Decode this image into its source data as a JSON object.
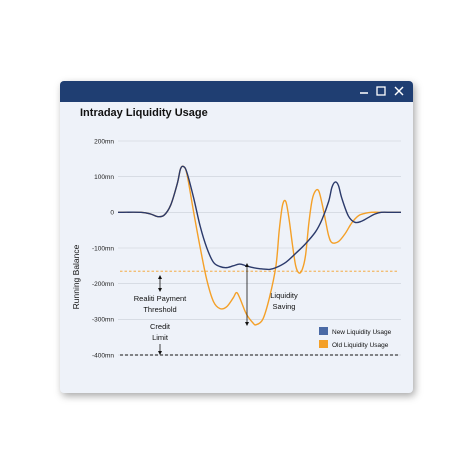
{
  "window": {
    "controls": [
      "minimize-icon",
      "maximize-icon",
      "close-icon"
    ]
  },
  "chart_data": {
    "type": "line",
    "title": "Intraday Liquidity Usage",
    "xlabel": "",
    "ylabel": "Running Balance",
    "ylim": [
      -400,
      200
    ],
    "yticks": [
      {
        "v": 200,
        "label": "200mn"
      },
      {
        "v": 100,
        "label": "100mn"
      },
      {
        "v": 0,
        "label": "0"
      },
      {
        "v": -100,
        "label": "-100mn"
      },
      {
        "v": -200,
        "label": "-200mn"
      },
      {
        "v": -300,
        "label": "-300mn"
      },
      {
        "v": -400,
        "label": "-400mn"
      }
    ],
    "grid": true,
    "legend_position": "bottom-right",
    "series": [
      {
        "name": "New Liquidity Usage",
        "color": "#2b3a6b",
        "points": [
          [
            0,
            0
          ],
          [
            7,
            0
          ],
          [
            10,
            -5
          ],
          [
            12,
            -12
          ],
          [
            14,
            -8
          ],
          [
            16,
            20
          ],
          [
            18,
            80
          ],
          [
            19,
            122
          ],
          [
            20,
            128
          ],
          [
            21,
            110
          ],
          [
            23,
            40
          ],
          [
            25,
            -40
          ],
          [
            27,
            -100
          ],
          [
            29,
            -140
          ],
          [
            31,
            -152
          ],
          [
            33,
            -155
          ],
          [
            35,
            -150
          ],
          [
            37,
            -145
          ],
          [
            39,
            -150
          ],
          [
            41,
            -155
          ],
          [
            43,
            -158
          ],
          [
            46,
            -160
          ],
          [
            48,
            -155
          ],
          [
            51,
            -140
          ],
          [
            54,
            -115
          ],
          [
            57,
            -88
          ],
          [
            60,
            -55
          ],
          [
            62,
            -20
          ],
          [
            64,
            30
          ],
          [
            65,
            70
          ],
          [
            66,
            85
          ],
          [
            67,
            75
          ],
          [
            68,
            40
          ],
          [
            70,
            -10
          ],
          [
            72,
            -28
          ],
          [
            74,
            -25
          ],
          [
            76,
            -15
          ],
          [
            78,
            -5
          ],
          [
            80,
            0
          ],
          [
            83,
            0
          ],
          [
            86,
            0
          ]
        ]
      },
      {
        "name": "Old Liquidity Usage",
        "color": "#f4a028",
        "points": [
          [
            0,
            0
          ],
          [
            7,
            0
          ],
          [
            10,
            -5
          ],
          [
            12,
            -12
          ],
          [
            14,
            -8
          ],
          [
            16,
            20
          ],
          [
            18,
            80
          ],
          [
            19,
            122
          ],
          [
            20,
            128
          ],
          [
            21,
            105
          ],
          [
            23,
            0
          ],
          [
            25,
            -100
          ],
          [
            27,
            -190
          ],
          [
            29,
            -250
          ],
          [
            31,
            -270
          ],
          [
            33,
            -265
          ],
          [
            35,
            -240
          ],
          [
            36,
            -225
          ],
          [
            37,
            -240
          ],
          [
            39,
            -285
          ],
          [
            41,
            -310
          ],
          [
            42,
            -315
          ],
          [
            44,
            -300
          ],
          [
            46,
            -240
          ],
          [
            48,
            -150
          ],
          [
            49,
            -50
          ],
          [
            50,
            20
          ],
          [
            51,
            30
          ],
          [
            52,
            -20
          ],
          [
            53,
            -90
          ],
          [
            54,
            -150
          ],
          [
            55,
            -170
          ],
          [
            56,
            -160
          ],
          [
            57,
            -120
          ],
          [
            58,
            -30
          ],
          [
            59,
            35
          ],
          [
            60,
            60
          ],
          [
            61,
            60
          ],
          [
            62,
            25
          ],
          [
            63,
            -20
          ],
          [
            64,
            -65
          ],
          [
            65,
            -85
          ],
          [
            67,
            -82
          ],
          [
            69,
            -60
          ],
          [
            71,
            -30
          ],
          [
            73,
            -10
          ],
          [
            75,
            -3
          ],
          [
            77,
            0
          ],
          [
            81,
            0
          ],
          [
            86,
            0
          ]
        ]
      }
    ],
    "reference_lines": [
      {
        "name": "Realiti Payment Threshold",
        "value": -165,
        "color": "#f4a028",
        "style": "dashed"
      },
      {
        "name": "Credit Limit",
        "value": -400,
        "color": "#111111",
        "style": "dashed"
      }
    ],
    "annotations": [
      {
        "text_lines": [
          "Realiti Payment",
          "Threshold"
        ]
      },
      {
        "text_lines": [
          "Credit",
          "Limit"
        ]
      },
      {
        "text_lines": [
          "Liquidity",
          "Saving"
        ]
      }
    ]
  }
}
